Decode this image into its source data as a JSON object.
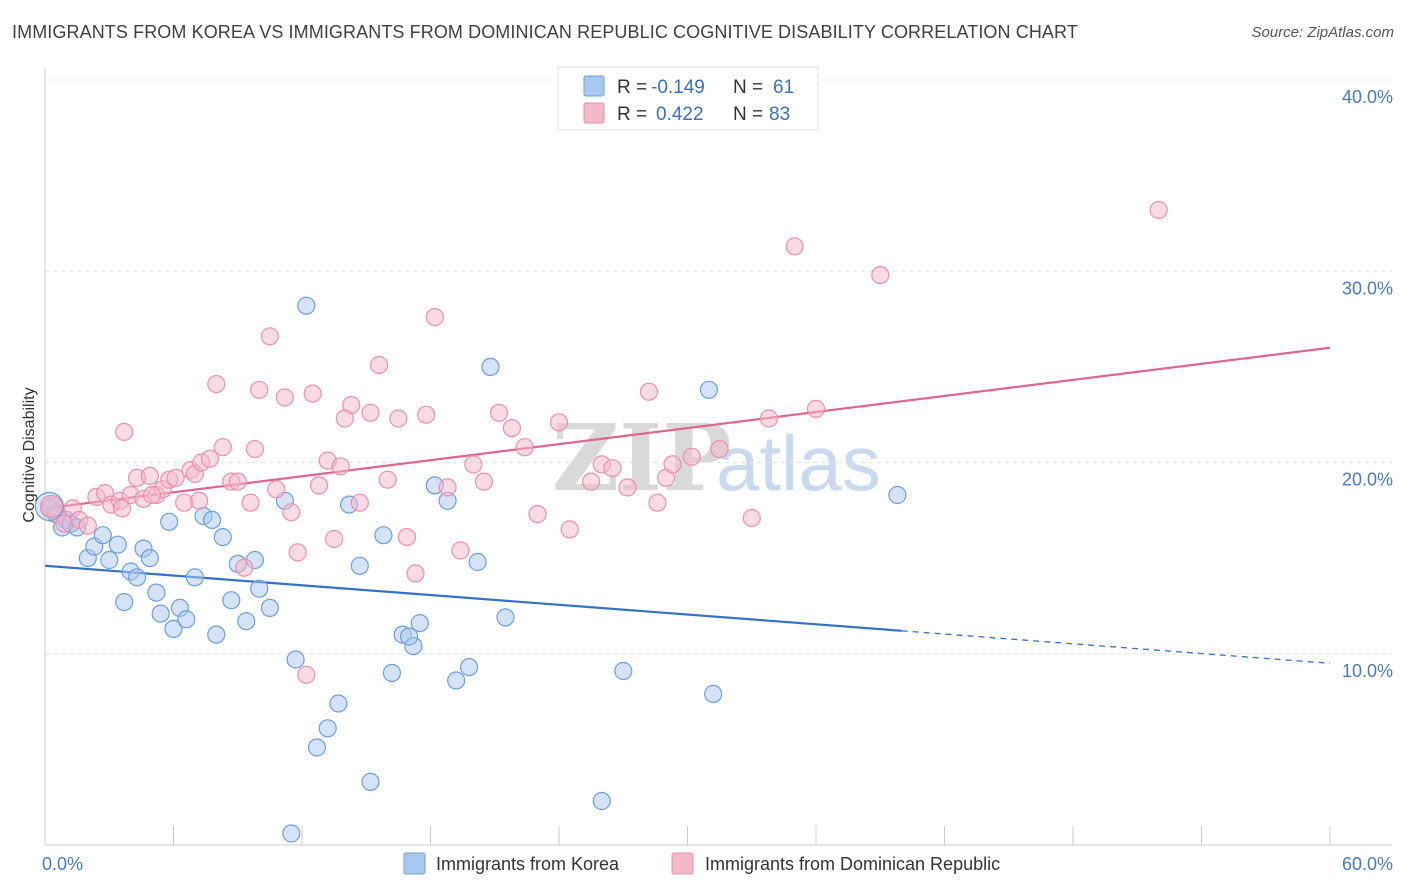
{
  "title": "IMMIGRANTS FROM KOREA VS IMMIGRANTS FROM DOMINICAN REPUBLIC COGNITIVE DISABILITY CORRELATION CHART",
  "source": "Source: ZipAtlas.com",
  "watermark": {
    "zip": "ZIP",
    "atlas": "atlas"
  },
  "legend": {
    "rows": [
      {
        "r_label": "R =",
        "r_value": "-0.149",
        "n_label": "N =",
        "n_value": "61",
        "color": "#a9c8f0"
      },
      {
        "r_label": "R =",
        "r_value": "0.422",
        "n_label": "N =",
        "n_value": "83",
        "color": "#f5b8ca"
      }
    ]
  },
  "chart_data": {
    "type": "scatter",
    "title": "IMMIGRANTS FROM KOREA VS IMMIGRANTS FROM DOMINICAN REPUBLIC COGNITIVE DISABILITY CORRELATION CHART",
    "xlabel": "",
    "ylabel": "Cognitive Disability",
    "xlim": [
      0,
      60
    ],
    "ylim": [
      0,
      40
    ],
    "x_tick_labels": [
      "0.0%",
      "60.0%"
    ],
    "y_ticks": [
      10,
      20,
      30,
      40
    ],
    "y_tick_labels": [
      "10.0%",
      "20.0%",
      "30.0%",
      "40.0%"
    ],
    "grid": true,
    "series": [
      {
        "name": "Immigrants from Korea",
        "color": "#6a9fe0",
        "fill": "#a9c8f0",
        "line_color": "#3572c6",
        "trend": {
          "x0": 0,
          "y0": 14.6,
          "x1": 40,
          "y1": 11.2,
          "dash_to_x": 60,
          "dash_to_y": 9.5
        },
        "points": [
          [
            0.2,
            17.6
          ],
          [
            0.5,
            17.3
          ],
          [
            0.8,
            16.6
          ],
          [
            1.0,
            17.0
          ],
          [
            1.2,
            16.8
          ],
          [
            1.5,
            16.6
          ],
          [
            2.0,
            15.0
          ],
          [
            2.3,
            15.6
          ],
          [
            2.7,
            16.2
          ],
          [
            3.0,
            14.9
          ],
          [
            3.4,
            15.7
          ],
          [
            3.7,
            12.7
          ],
          [
            4.0,
            14.3
          ],
          [
            4.3,
            14.0
          ],
          [
            4.6,
            15.5
          ],
          [
            4.9,
            15.0
          ],
          [
            5.2,
            13.2
          ],
          [
            5.4,
            12.1
          ],
          [
            5.8,
            16.9
          ],
          [
            6.0,
            11.3
          ],
          [
            6.3,
            12.4
          ],
          [
            6.6,
            11.8
          ],
          [
            7.0,
            14.0
          ],
          [
            7.4,
            17.2
          ],
          [
            7.8,
            17.0
          ],
          [
            8.0,
            11.0
          ],
          [
            8.3,
            16.1
          ],
          [
            8.7,
            12.8
          ],
          [
            9.0,
            14.7
          ],
          [
            9.4,
            11.7
          ],
          [
            9.8,
            14.9
          ],
          [
            10.0,
            13.4
          ],
          [
            10.5,
            12.4
          ],
          [
            11.2,
            18.0
          ],
          [
            11.7,
            9.7
          ],
          [
            12.2,
            28.2
          ],
          [
            12.7,
            5.1
          ],
          [
            13.2,
            6.1
          ],
          [
            13.7,
            7.4
          ],
          [
            14.2,
            17.8
          ],
          [
            14.7,
            14.6
          ],
          [
            15.2,
            3.3
          ],
          [
            15.8,
            16.2
          ],
          [
            16.2,
            9.0
          ],
          [
            16.7,
            11.0
          ],
          [
            17.2,
            10.4
          ],
          [
            17.5,
            11.6
          ],
          [
            18.2,
            18.8
          ],
          [
            18.8,
            18.0
          ],
          [
            19.2,
            8.6
          ],
          [
            19.8,
            9.3
          ],
          [
            20.2,
            14.8
          ],
          [
            20.8,
            25.0
          ],
          [
            21.5,
            11.9
          ],
          [
            26.0,
            2.3
          ],
          [
            27.0,
            9.1
          ],
          [
            31.0,
            23.8
          ],
          [
            31.2,
            7.9
          ],
          [
            39.8,
            18.3
          ],
          [
            11.5,
            0.6
          ],
          [
            17.0,
            10.9
          ]
        ]
      },
      {
        "name": "Immigrants from Dominican Republic",
        "color": "#ec8fab",
        "fill": "#f5b8ca",
        "line_color": "#e06690",
        "trend": {
          "x0": 0,
          "y0": 17.6,
          "x1": 60,
          "y1": 26.0
        },
        "points": [
          [
            0.3,
            17.7
          ],
          [
            0.6,
            17.3
          ],
          [
            0.9,
            16.8
          ],
          [
            1.3,
            17.6
          ],
          [
            1.6,
            17.0
          ],
          [
            2.0,
            16.7
          ],
          [
            2.4,
            18.2
          ],
          [
            2.8,
            18.4
          ],
          [
            3.1,
            17.8
          ],
          [
            3.5,
            18.0
          ],
          [
            3.7,
            21.6
          ],
          [
            4.0,
            18.3
          ],
          [
            4.3,
            19.2
          ],
          [
            4.6,
            18.1
          ],
          [
            4.9,
            19.3
          ],
          [
            5.2,
            18.3
          ],
          [
            5.5,
            18.6
          ],
          [
            5.8,
            19.1
          ],
          [
            6.1,
            19.2
          ],
          [
            6.5,
            17.9
          ],
          [
            6.8,
            19.6
          ],
          [
            7.0,
            19.4
          ],
          [
            7.3,
            20.0
          ],
          [
            7.7,
            20.2
          ],
          [
            8.0,
            24.1
          ],
          [
            8.3,
            20.8
          ],
          [
            8.7,
            19.0
          ],
          [
            9.0,
            19.0
          ],
          [
            9.3,
            14.5
          ],
          [
            9.6,
            17.9
          ],
          [
            10.0,
            23.8
          ],
          [
            10.5,
            26.6
          ],
          [
            10.8,
            18.6
          ],
          [
            11.2,
            23.4
          ],
          [
            11.5,
            17.4
          ],
          [
            11.8,
            15.3
          ],
          [
            12.2,
            8.9
          ],
          [
            12.5,
            23.6
          ],
          [
            12.8,
            18.8
          ],
          [
            13.2,
            20.1
          ],
          [
            13.5,
            16.0
          ],
          [
            13.8,
            19.8
          ],
          [
            14.3,
            23.0
          ],
          [
            14.7,
            17.9
          ],
          [
            15.2,
            22.6
          ],
          [
            15.6,
            25.1
          ],
          [
            16.0,
            19.1
          ],
          [
            16.5,
            22.3
          ],
          [
            16.9,
            16.1
          ],
          [
            17.3,
            14.2
          ],
          [
            17.8,
            22.5
          ],
          [
            18.2,
            27.6
          ],
          [
            18.8,
            18.7
          ],
          [
            19.4,
            15.4
          ],
          [
            20.0,
            19.9
          ],
          [
            20.5,
            19.0
          ],
          [
            21.2,
            22.6
          ],
          [
            21.8,
            21.8
          ],
          [
            22.4,
            20.8
          ],
          [
            23.0,
            17.3
          ],
          [
            24.0,
            22.1
          ],
          [
            24.5,
            16.5
          ],
          [
            25.5,
            19.0
          ],
          [
            26.0,
            19.9
          ],
          [
            26.5,
            19.7
          ],
          [
            27.2,
            18.7
          ],
          [
            28.2,
            23.7
          ],
          [
            28.6,
            17.9
          ],
          [
            29.0,
            19.2
          ],
          [
            29.3,
            19.9
          ],
          [
            30.2,
            20.3
          ],
          [
            31.5,
            20.7
          ],
          [
            33.0,
            17.1
          ],
          [
            33.8,
            22.3
          ],
          [
            35.0,
            31.3
          ],
          [
            36.0,
            22.8
          ],
          [
            39.0,
            29.8
          ],
          [
            52.0,
            33.2
          ],
          [
            9.8,
            20.7
          ],
          [
            5.0,
            18.3
          ],
          [
            3.6,
            17.6
          ],
          [
            7.2,
            18.0
          ],
          [
            14.0,
            22.3
          ]
        ]
      }
    ]
  },
  "bottom_legend": [
    {
      "label": "Immigrants from Korea",
      "color": "#a9c8f0"
    },
    {
      "label": "Immigrants from Dominican Republic",
      "color": "#f5b8ca"
    }
  ]
}
